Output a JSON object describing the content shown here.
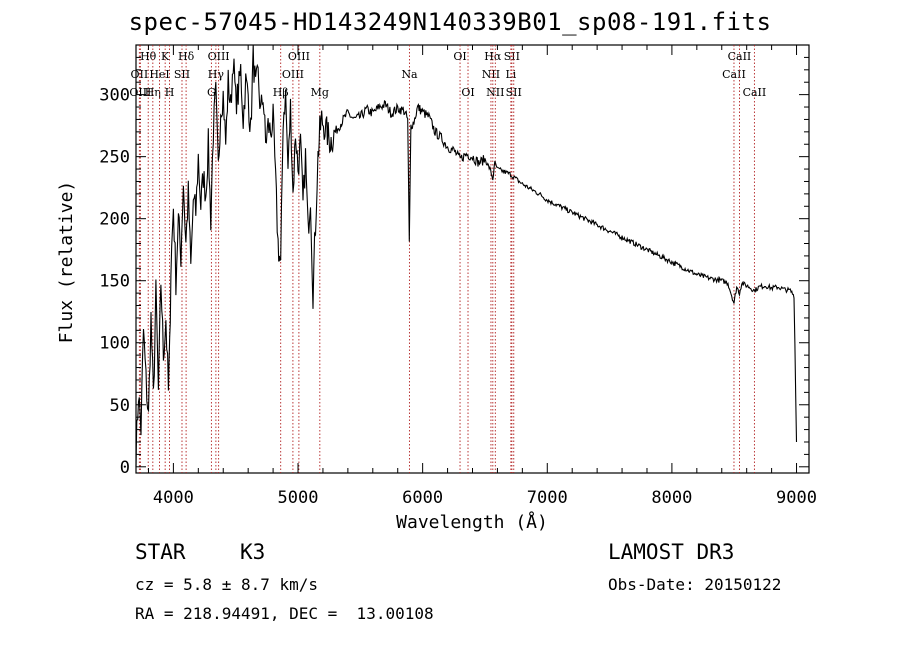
{
  "title": "spec-57045-HD143249N140339B01_sp08-191.fits",
  "info": {
    "class_label": "STAR",
    "subclass": "K3",
    "survey": "LAMOST DR3",
    "cz": "cz = 5.8 ± 8.7 km/s",
    "obs_date": "Obs-Date: 20150122",
    "radec": "RA = 218.94491, DEC =  13.00108"
  },
  "chart_data": {
    "type": "line",
    "title": "spec-57045-HD143249N140339B01_sp08-191.fits",
    "xlabel": "Wavelength (Å)",
    "ylabel": "Flux (relative)",
    "xlim": [
      3700,
      9100
    ],
    "ylim": [
      -5,
      340
    ],
    "xticks": [
      4000,
      5000,
      6000,
      7000,
      8000,
      9000
    ],
    "yticks": [
      0,
      50,
      100,
      150,
      200,
      250,
      300
    ],
    "grid": false,
    "line_color": "#000000",
    "marker_color": "#b22222",
    "series": [
      {
        "name": "flux",
        "x": [
          3700,
          3720,
          3740,
          3760,
          3780,
          3800,
          3820,
          3840,
          3860,
          3880,
          3900,
          3920,
          3940,
          3960,
          3970,
          3980,
          4000,
          4020,
          4040,
          4060,
          4080,
          4100,
          4120,
          4140,
          4160,
          4180,
          4200,
          4220,
          4240,
          4260,
          4280,
          4300,
          4320,
          4340,
          4360,
          4380,
          4400,
          4420,
          4440,
          4460,
          4480,
          4500,
          4520,
          4540,
          4560,
          4580,
          4600,
          4620,
          4640,
          4660,
          4680,
          4700,
          4720,
          4740,
          4760,
          4780,
          4800,
          4820,
          4840,
          4861,
          4880,
          4900,
          4920,
          4940,
          4960,
          4980,
          5000,
          5020,
          5040,
          5060,
          5080,
          5100,
          5120,
          5140,
          5160,
          5175,
          5190,
          5210,
          5230,
          5260,
          5300,
          5350,
          5400,
          5450,
          5500,
          5550,
          5600,
          5650,
          5700,
          5750,
          5800,
          5850,
          5880,
          5893,
          5906,
          5930,
          5960,
          6000,
          6050,
          6100,
          6150,
          6200,
          6250,
          6300,
          6350,
          6400,
          6450,
          6500,
          6540,
          6563,
          6580,
          6600,
          6650,
          6700,
          6750,
          6800,
          6850,
          6900,
          6950,
          7000,
          7100,
          7200,
          7300,
          7400,
          7500,
          7600,
          7700,
          7800,
          7900,
          8000,
          8100,
          8200,
          8300,
          8400,
          8450,
          8498,
          8520,
          8542,
          8560,
          8620,
          8662,
          8700,
          8750,
          8800,
          8850,
          8900,
          8950,
          8980,
          9000
        ],
        "values": [
          10,
          60,
          30,
          110,
          70,
          40,
          120,
          55,
          140,
          60,
          150,
          90,
          120,
          60,
          95,
          160,
          210,
          150,
          200,
          170,
          230,
          180,
          220,
          160,
          215,
          205,
          250,
          210,
          235,
          220,
          260,
          200,
          270,
          300,
          240,
          290,
          300,
          260,
          310,
          290,
          330,
          295,
          300,
          320,
          280,
          310,
          300,
          270,
          330,
          305,
          315,
          285,
          300,
          260,
          275,
          270,
          280,
          230,
          180,
          160,
          280,
          300,
          240,
          290,
          220,
          270,
          240,
          260,
          210,
          250,
          190,
          220,
          140,
          195,
          250,
          270,
          280,
          275,
          270,
          262,
          270,
          278,
          285,
          280,
          282,
          288,
          285,
          290,
          292,
          285,
          289,
          287,
          280,
          180,
          275,
          278,
          290,
          286,
          282,
          270,
          265,
          258,
          255,
          248,
          252,
          250,
          245,
          248,
          240,
          232,
          245,
          240,
          238,
          236,
          232,
          228,
          225,
          222,
          219,
          215,
          210,
          205,
          200,
          195,
          190,
          185,
          180,
          175,
          170,
          165,
          160,
          155,
          152,
          150,
          148,
          132,
          145,
          140,
          148,
          145,
          142,
          145,
          146,
          144,
          145,
          143,
          142,
          138,
          20
        ]
      }
    ],
    "line_markers": [
      {
        "label": "Hθ",
        "wavelength": 3798,
        "row": 0
      },
      {
        "label": "OII",
        "wavelength": 3727,
        "row": 1
      },
      {
        "label": "OIII",
        "wavelength": 3735,
        "row": 2
      },
      {
        "label": "Hη",
        "wavelength": 3835,
        "row": 2
      },
      {
        "label": "HeI",
        "wavelength": 3889,
        "row": 1
      },
      {
        "label": "K",
        "wavelength": 3934,
        "row": 0
      },
      {
        "label": "H",
        "wavelength": 3969,
        "row": 2
      },
      {
        "label": "SII",
        "wavelength": 4069,
        "row": 1
      },
      {
        "label": "Hδ",
        "wavelength": 4102,
        "row": 0
      },
      {
        "label": "G",
        "wavelength": 4305,
        "row": 2
      },
      {
        "label": "Hγ",
        "wavelength": 4341,
        "row": 1
      },
      {
        "label": "OIII",
        "wavelength": 4363,
        "row": 0
      },
      {
        "label": "Hβ",
        "wavelength": 4861,
        "row": 2
      },
      {
        "label": "OIII",
        "wavelength": 4959,
        "row": 1
      },
      {
        "label": "OIII",
        "wavelength": 5007,
        "row": 0
      },
      {
        "label": "Mg",
        "wavelength": 5175,
        "row": 2
      },
      {
        "label": "Na",
        "wavelength": 5894,
        "row": 1
      },
      {
        "label": "OI",
        "wavelength": 6300,
        "row": 0
      },
      {
        "label": "OI",
        "wavelength": 6364,
        "row": 2
      },
      {
        "label": "NII",
        "wavelength": 6548,
        "row": 1
      },
      {
        "label": "Hα",
        "wavelength": 6563,
        "row": 0
      },
      {
        "label": "NII",
        "wavelength": 6583,
        "row": 2
      },
      {
        "label": "Li",
        "wavelength": 6708,
        "row": 1
      },
      {
        "label": "SII",
        "wavelength": 6716,
        "row": 0
      },
      {
        "label": "SII",
        "wavelength": 6731,
        "row": 2
      },
      {
        "label": "CaII",
        "wavelength": 8498,
        "row": 1
      },
      {
        "label": "CaII",
        "wavelength": 8542,
        "row": 0
      },
      {
        "label": "CaII",
        "wavelength": 8662,
        "row": 2
      }
    ]
  }
}
